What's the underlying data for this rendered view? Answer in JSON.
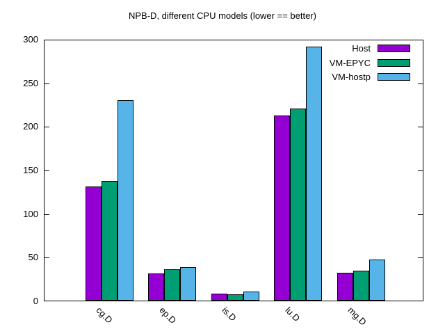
{
  "title": "NPB-D, different CPU models (lower == better)",
  "chart_data": {
    "type": "bar",
    "title": "NPB-D, different CPU models (lower == better)",
    "categories": [
      "cg.D",
      "ep.D",
      "is.D",
      "lu.D",
      "mg.D"
    ],
    "series": [
      {
        "name": "Host",
        "color": "#9400d3",
        "values": [
          131,
          31,
          8,
          212,
          32
        ]
      },
      {
        "name": "VM-EPYC",
        "color": "#009e73",
        "values": [
          137,
          36,
          7.5,
          220,
          34.5
        ]
      },
      {
        "name": "VM-hostp",
        "color": "#56b4e9",
        "values": [
          230,
          38,
          10.5,
          291,
          47
        ]
      }
    ],
    "xlabel": "",
    "ylabel": "",
    "ylim": [
      0,
      300
    ],
    "yticks": [
      0,
      50,
      100,
      150,
      200,
      250,
      300
    ],
    "grid": false,
    "legend_position": "top-right",
    "bar_outline_color": "#000000",
    "background_color": "#ffffff"
  }
}
